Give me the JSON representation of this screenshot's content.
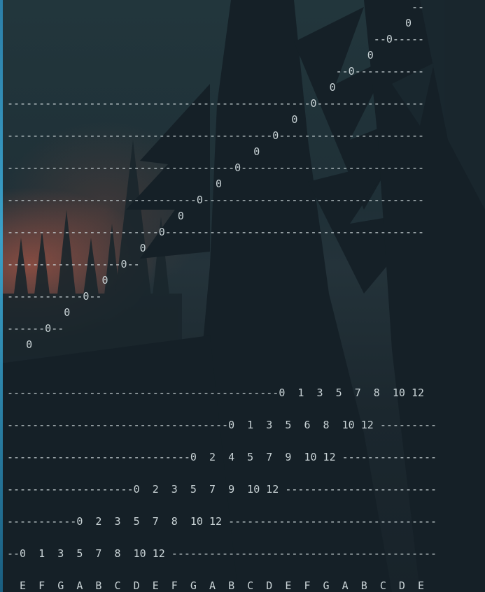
{
  "terminal": {
    "lines": [
      "                                                                --",
      "                                                               0",
      "                                                          --0-----",
      "                                                         0",
      "                                                    --0-----------",
      "                                                   0",
      "------------------------------------------------0-----------------",
      "                                             0",
      "------------------------------------------0-----------------------",
      "                                       0",
      "------------------------------------0-----------------------------",
      "                                 0",
      "------------------------------0-----------------------------------",
      "                           0",
      "------------------------0-----------------------------------------",
      "                     0",
      "------------------0--",
      "               0",
      "------------0--",
      "         0",
      "------0--",
      "   0",
      "",
      "-------------------------------------------0  1  3  5  7  8  10 12",
      "-----------------------------------0  1  3  5  6  8  10 12 ---------",
      "-----------------------------0  2  4  5  7  9  10 12 ---------------",
      "--------------------0  2  3  5  7  9  10 12 ------------------------",
      "-----------0  2  3  5  7  8  10 12 ---------------------------------",
      "--0  1  3  5  7  8  10 12 ------------------------------------------",
      "  E  F  G  A  B  C  D  E  F  G  A  B  C  D  E  F  G  A  B  C  D  E"
    ]
  }
}
